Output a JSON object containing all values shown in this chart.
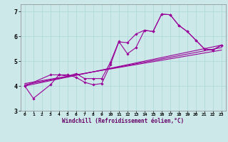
{
  "xlabel": "Windchill (Refroidissement éolien,°C)",
  "bg_color": "#cce8e8",
  "line_color": "#990099",
  "xlim": [
    -0.5,
    23.5
  ],
  "ylim": [
    3.0,
    7.3
  ],
  "yticks": [
    3,
    4,
    5,
    6,
    7
  ],
  "xticks": [
    0,
    1,
    2,
    3,
    4,
    5,
    6,
    7,
    8,
    9,
    10,
    11,
    12,
    13,
    14,
    15,
    16,
    17,
    18,
    19,
    20,
    21,
    22,
    23
  ],
  "s1x": [
    0,
    1,
    3,
    4,
    5,
    6,
    7,
    8,
    9,
    10,
    11,
    12,
    13,
    14,
    15,
    16,
    17,
    18,
    19,
    20,
    21,
    22,
    23
  ],
  "s1y": [
    4.0,
    3.5,
    4.05,
    4.45,
    4.45,
    4.35,
    4.15,
    4.05,
    4.1,
    4.85,
    5.78,
    5.75,
    6.1,
    6.25,
    6.2,
    6.9,
    6.88,
    6.45,
    6.2,
    5.85,
    5.5,
    5.45,
    5.65
  ],
  "s2x": [
    0,
    3,
    4,
    5,
    6,
    7,
    8,
    9,
    10,
    11,
    12,
    13,
    14,
    15,
    16,
    17,
    18,
    19,
    20,
    21,
    22,
    23
  ],
  "s2y": [
    4.0,
    4.45,
    4.45,
    4.4,
    4.5,
    4.3,
    4.3,
    4.3,
    4.95,
    5.8,
    5.3,
    5.55,
    6.25,
    6.2,
    6.9,
    6.88,
    6.45,
    6.2,
    5.85,
    5.5,
    5.45,
    5.65
  ],
  "t1x": [
    0,
    23
  ],
  "t1y": [
    4.0,
    5.65
  ],
  "t2x": [
    0,
    23
  ],
  "t2y": [
    4.05,
    5.55
  ],
  "t3x": [
    0,
    23
  ],
  "t3y": [
    4.1,
    5.45
  ]
}
